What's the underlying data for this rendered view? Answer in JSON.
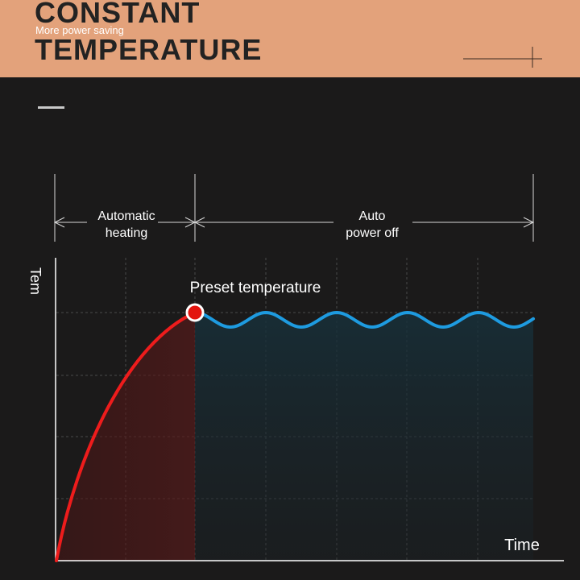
{
  "header": {
    "title_line1": "CONSTANT",
    "subtitle": "More power saving",
    "title_line2": "TEMPERATURE"
  },
  "phases": {
    "heating_line1": "Automatic",
    "heating_line2": "heating",
    "poweroff_line1": "Auto",
    "poweroff_line2": "power off"
  },
  "chart": {
    "y_label": "Tem",
    "x_label": "Time",
    "annotation": "Preset temperature"
  },
  "colors": {
    "header_bg": "#e3a27b",
    "background": "#1b1a1a",
    "heating_curve": "#ee1c1c",
    "hold_curve": "#1e9be0",
    "marker_fill": "#e3140e"
  }
}
